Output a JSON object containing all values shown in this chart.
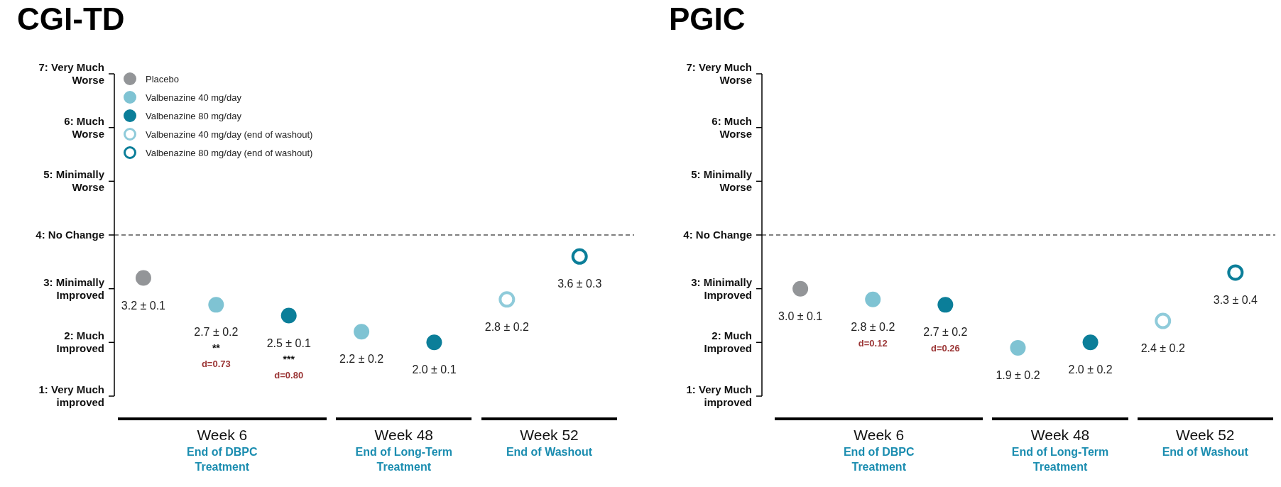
{
  "chart_data": [
    {
      "type": "scatter",
      "title": "CGI-TD",
      "categories": [
        null,
        null,
        null,
        null,
        null,
        null,
        null
      ],
      "ylim": [
        1,
        7
      ],
      "yticks": [
        {
          "value": 1,
          "label": "1: Very Much improved"
        },
        {
          "value": 2,
          "label": "2: Much Improved"
        },
        {
          "value": 3,
          "label": "3: Minimally Improved"
        },
        {
          "value": 4,
          "label": "4: No Change"
        },
        {
          "value": 5,
          "label": "5: Minimally Worse"
        },
        {
          "value": 6,
          "label": "6: Much Worse"
        },
        {
          "value": 7,
          "label": "7: Very Much Worse"
        }
      ],
      "ref_lines": [
        {
          "axis": "y",
          "value": 4,
          "line_style": "dashed"
        }
      ],
      "legend": "top left",
      "series": [
        {
          "name": "Placebo",
          "color": "#939598",
          "marker": "circle",
          "values": [
            3.2,
            null,
            null,
            null,
            null,
            null,
            null
          ],
          "value_labels": [
            "3.2 ± 0.1",
            null,
            null,
            null,
            null,
            null,
            null
          ]
        },
        {
          "name": "Valbenazine 40 mg/day",
          "color": "#7fc3d3",
          "marker": "circle",
          "values": [
            null,
            2.7,
            null,
            2.2,
            null,
            null,
            null
          ],
          "value_labels": [
            null,
            "2.7 ± 0.2\n**\nd=0.73",
            null,
            "2.2 ± 0.2",
            null,
            null,
            null
          ]
        },
        {
          "name": "Valbenazine 80 mg/day",
          "color": "#0b7e99",
          "marker": "circle",
          "values": [
            null,
            null,
            2.5,
            null,
            2.0,
            null,
            null
          ],
          "value_labels": [
            null,
            null,
            "2.5 ± 0.1\n***\nd=0.80",
            null,
            "2.0 ± 0.1",
            null,
            null
          ]
        },
        {
          "name": "Valbenazine 40 mg/day (end of washout)",
          "color": "#8fcbda",
          "marker": "circle-open",
          "values": [
            null,
            null,
            null,
            null,
            null,
            2.8,
            null
          ],
          "value_labels": [
            null,
            null,
            null,
            null,
            null,
            "2.8 ± 0.2",
            null
          ]
        },
        {
          "name": "Valbenazine 80 mg/day (end of washout)",
          "color": "#0b7e99",
          "marker": "circle-open",
          "values": [
            null,
            null,
            null,
            null,
            null,
            null,
            3.6
          ],
          "value_labels": [
            null,
            null,
            null,
            null,
            null,
            null,
            "3.6 ± 0.3"
          ]
        }
      ],
      "annotations": [
        "Week 6",
        "End of DBPC Treatment",
        "Week 48",
        "End of Long-Term Treatment",
        "Week 52",
        "End of Washout"
      ]
    },
    {
      "type": "scatter",
      "title": "PGIC",
      "categories": [
        null,
        null,
        null,
        null,
        null,
        null,
        null
      ],
      "ylim": [
        1,
        7
      ],
      "yticks": [
        {
          "value": 1,
          "label": "1: Very Much improved"
        },
        {
          "value": 2,
          "label": "2: Much Improved"
        },
        {
          "value": 3,
          "label": "3: Minimally Improved"
        },
        {
          "value": 4,
          "label": "4: No Change"
        },
        {
          "value": 5,
          "label": "5: Minimally Worse"
        },
        {
          "value": 6,
          "label": "6: Much Worse"
        },
        {
          "value": 7,
          "label": "7: Very Much Worse"
        }
      ],
      "ref_lines": [
        {
          "axis": "y",
          "value": 4,
          "line_style": "dashed"
        }
      ],
      "series": [
        {
          "color": "#939598",
          "marker": "circle",
          "values": [
            3.0,
            null,
            null,
            null,
            null,
            null,
            null
          ],
          "value_labels": [
            "3.0 ± 0.1",
            null,
            null,
            null,
            null,
            null,
            null
          ]
        },
        {
          "color": "#7fc3d3",
          "marker": "circle",
          "values": [
            null,
            2.8,
            null,
            1.9,
            null,
            null,
            null
          ],
          "value_labels": [
            null,
            "2.8 ± 0.2\nd=0.12",
            null,
            "1.9 ± 0.2",
            null,
            null,
            null
          ]
        },
        {
          "color": "#0b7e99",
          "marker": "circle",
          "values": [
            null,
            null,
            2.7,
            null,
            2.0,
            null,
            null
          ],
          "value_labels": [
            null,
            null,
            "2.7 ± 0.2\nd=0.26",
            null,
            "2.0 ± 0.2",
            null,
            null
          ]
        },
        {
          "color": "#8fcbda",
          "marker": "circle-open",
          "values": [
            null,
            null,
            null,
            null,
            null,
            2.4,
            null
          ],
          "value_labels": [
            null,
            null,
            null,
            null,
            null,
            "2.4 ± 0.2",
            null
          ]
        },
        {
          "color": "#0b7e99",
          "marker": "circle-open",
          "values": [
            null,
            null,
            null,
            null,
            null,
            null,
            3.3
          ],
          "value_labels": [
            null,
            null,
            null,
            null,
            null,
            null,
            "3.3 ± 0.4"
          ]
        }
      ],
      "annotations": [
        "Week 6",
        "End of DBPC Treatment",
        "Week 48",
        "End of Long-Term Treatment",
        "Week 52",
        "End of Washout"
      ]
    }
  ]
}
